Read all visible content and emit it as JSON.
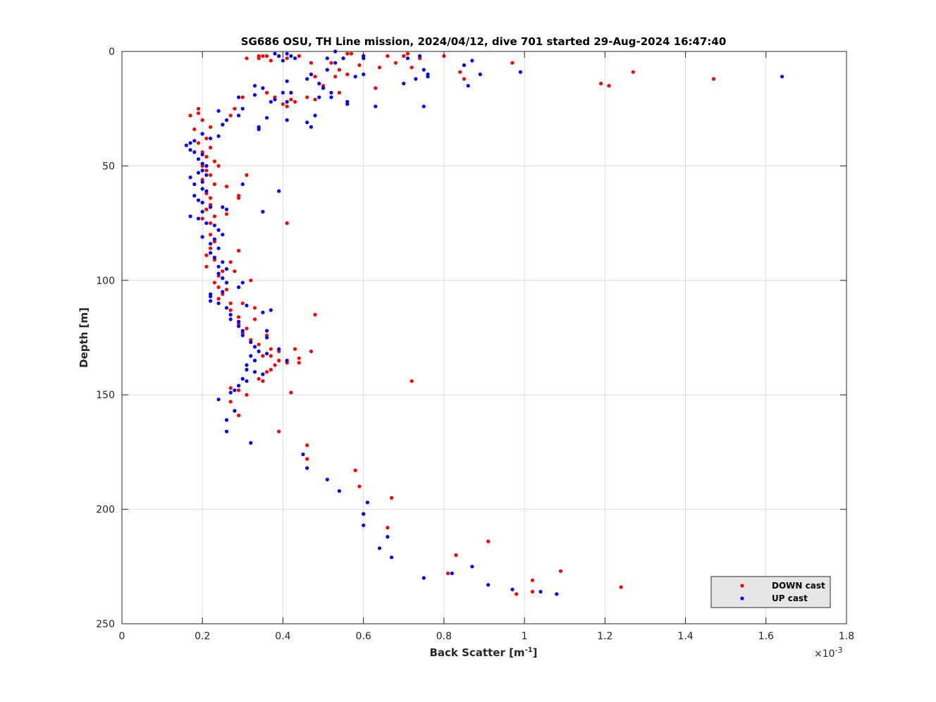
{
  "chart_data": {
    "type": "scatter",
    "title": "SG686 OSU, TH Line mission, 2024/04/12, dive 701 started 29-Aug-2024 16:47:40",
    "xlabel_main": "Back Scatter [m",
    "xlabel_sup": "-1",
    "xlabel_end": "]",
    "ylabel": "Depth [m]",
    "x_exponent_prefix": "×10",
    "x_exponent": "-3",
    "xlim": [
      0,
      1.8
    ],
    "ylim": [
      0,
      250
    ],
    "y_reversed": true,
    "grid": true,
    "legend_placement": "bottom-right",
    "xticks": [
      "0",
      "0.2",
      "0.4",
      "0.6",
      "0.8",
      "1",
      "1.2",
      "1.4",
      "1.6",
      "1.8"
    ],
    "yticks": [
      "0",
      "50",
      "100",
      "150",
      "200",
      "250"
    ],
    "series": [
      {
        "name": "DOWN cast",
        "color": "#ff0000",
        "points": [
          [
            0.31,
            3
          ],
          [
            0.34,
            2
          ],
          [
            0.35,
            2
          ],
          [
            0.36,
            2
          ],
          [
            0.34,
            3
          ],
          [
            0.37,
            4
          ],
          [
            0.39,
            2
          ],
          [
            0.41,
            3
          ],
          [
            0.44,
            2
          ],
          [
            0.47,
            5
          ],
          [
            0.52,
            5
          ],
          [
            0.55,
            3
          ],
          [
            0.56,
            1
          ],
          [
            0.57,
            1
          ],
          [
            0.59,
            6
          ],
          [
            0.6,
            2
          ],
          [
            0.64,
            7
          ],
          [
            0.66,
            2
          ],
          [
            0.68,
            5
          ],
          [
            0.7,
            2
          ],
          [
            0.71,
            1
          ],
          [
            0.72,
            7
          ],
          [
            0.74,
            3
          ],
          [
            0.8,
            2
          ],
          [
            0.84,
            9
          ],
          [
            0.85,
            12
          ],
          [
            0.97,
            5
          ],
          [
            1.19,
            14
          ],
          [
            1.21,
            15
          ],
          [
            1.27,
            9
          ],
          [
            1.47,
            12
          ],
          [
            0.56,
            10
          ],
          [
            0.54,
            8
          ],
          [
            0.53,
            11
          ],
          [
            0.48,
            11
          ],
          [
            0.5,
            15
          ],
          [
            0.54,
            18
          ],
          [
            0.63,
            16
          ],
          [
            0.46,
            20
          ],
          [
            0.42,
            21
          ],
          [
            0.48,
            21
          ],
          [
            0.4,
            23
          ],
          [
            0.43,
            22
          ],
          [
            0.41,
            24
          ],
          [
            0.38,
            20
          ],
          [
            0.36,
            18
          ],
          [
            0.3,
            20
          ],
          [
            0.28,
            25
          ],
          [
            0.27,
            28
          ],
          [
            0.25,
            32
          ],
          [
            0.22,
            33
          ],
          [
            0.19,
            25
          ],
          [
            0.19,
            27
          ],
          [
            0.17,
            28
          ],
          [
            0.2,
            30
          ],
          [
            0.18,
            34
          ],
          [
            0.2,
            36
          ],
          [
            0.21,
            38
          ],
          [
            0.19,
            40
          ],
          [
            0.22,
            42
          ],
          [
            0.2,
            44
          ],
          [
            0.21,
            46
          ],
          [
            0.23,
            48
          ],
          [
            0.2,
            50
          ],
          [
            0.21,
            52
          ],
          [
            0.24,
            50
          ],
          [
            0.22,
            54
          ],
          [
            0.2,
            56
          ],
          [
            0.23,
            58
          ],
          [
            0.26,
            59
          ],
          [
            0.31,
            54
          ],
          [
            0.21,
            62
          ],
          [
            0.22,
            64
          ],
          [
            0.29,
            63
          ],
          [
            0.29,
            64
          ],
          [
            0.22,
            67
          ],
          [
            0.21,
            69
          ],
          [
            0.26,
            71
          ],
          [
            0.23,
            72
          ],
          [
            0.2,
            73
          ],
          [
            0.22,
            75
          ],
          [
            0.41,
            75
          ],
          [
            0.24,
            78
          ],
          [
            0.22,
            80
          ],
          [
            0.23,
            83
          ],
          [
            0.22,
            86
          ],
          [
            0.21,
            89
          ],
          [
            0.29,
            87
          ],
          [
            0.23,
            91
          ],
          [
            0.27,
            92
          ],
          [
            0.21,
            94
          ],
          [
            0.25,
            96
          ],
          [
            0.24,
            98
          ],
          [
            0.28,
            96
          ],
          [
            0.32,
            100
          ],
          [
            0.23,
            101
          ],
          [
            0.24,
            103
          ],
          [
            0.26,
            104
          ],
          [
            0.25,
            106
          ],
          [
            0.24,
            108
          ],
          [
            0.27,
            110
          ],
          [
            0.3,
            110
          ],
          [
            0.33,
            112
          ],
          [
            0.27,
            113
          ],
          [
            0.48,
            115
          ],
          [
            0.29,
            116
          ],
          [
            0.33,
            117
          ],
          [
            0.29,
            119
          ],
          [
            0.31,
            121
          ],
          [
            0.3,
            123
          ],
          [
            0.36,
            124
          ],
          [
            0.32,
            126
          ],
          [
            0.34,
            128
          ],
          [
            0.37,
            130
          ],
          [
            0.43,
            130
          ],
          [
            0.39,
            131
          ],
          [
            0.47,
            131
          ],
          [
            0.35,
            133
          ],
          [
            0.37,
            133
          ],
          [
            0.39,
            135
          ],
          [
            0.44,
            134
          ],
          [
            0.41,
            136
          ],
          [
            0.44,
            136
          ],
          [
            0.38,
            137
          ],
          [
            0.37,
            139
          ],
          [
            0.36,
            140
          ],
          [
            0.35,
            141
          ],
          [
            0.34,
            143
          ],
          [
            0.35,
            144
          ],
          [
            0.72,
            144
          ],
          [
            0.27,
            147
          ],
          [
            0.29,
            148
          ],
          [
            0.42,
            149
          ],
          [
            0.31,
            150
          ],
          [
            0.27,
            153
          ],
          [
            0.29,
            159
          ],
          [
            0.39,
            166
          ],
          [
            0.46,
            172
          ],
          [
            0.46,
            178
          ],
          [
            0.58,
            183
          ],
          [
            0.59,
            190
          ],
          [
            0.67,
            195
          ],
          [
            0.6,
            202
          ],
          [
            0.66,
            208
          ],
          [
            0.91,
            214
          ],
          [
            0.83,
            220
          ],
          [
            1.09,
            227
          ],
          [
            0.81,
            228
          ],
          [
            1.02,
            231
          ],
          [
            1.24,
            234
          ],
          [
            1.02,
            236
          ],
          [
            0.98,
            237
          ]
        ]
      },
      {
        "name": "UP cast",
        "color": "#0000ff",
        "points": [
          [
            0.53,
            0
          ],
          [
            0.38,
            1
          ],
          [
            0.39,
            2
          ],
          [
            0.41,
            1
          ],
          [
            0.42,
            2
          ],
          [
            0.4,
            4
          ],
          [
            0.43,
            3
          ],
          [
            0.51,
            3
          ],
          [
            0.55,
            3
          ],
          [
            0.6,
            2
          ],
          [
            0.6,
            3
          ],
          [
            0.71,
            3
          ],
          [
            0.74,
            2
          ],
          [
            0.75,
            8
          ],
          [
            0.76,
            10
          ],
          [
            0.76,
            11
          ],
          [
            0.87,
            4
          ],
          [
            0.85,
            6
          ],
          [
            0.89,
            10
          ],
          [
            0.99,
            9
          ],
          [
            1.64,
            11
          ],
          [
            0.73,
            12
          ],
          [
            0.7,
            14
          ],
          [
            0.6,
            10
          ],
          [
            0.58,
            11
          ],
          [
            0.53,
            5
          ],
          [
            0.51,
            8
          ],
          [
            0.47,
            10
          ],
          [
            0.46,
            12
          ],
          [
            0.49,
            14
          ],
          [
            0.5,
            16
          ],
          [
            0.52,
            18
          ],
          [
            0.49,
            20
          ],
          [
            0.52,
            20
          ],
          [
            0.56,
            22
          ],
          [
            0.56,
            23
          ],
          [
            0.63,
            24
          ],
          [
            0.75,
            24
          ],
          [
            0.86,
            15
          ],
          [
            0.41,
            13
          ],
          [
            0.4,
            18
          ],
          [
            0.42,
            18
          ],
          [
            0.41,
            22
          ],
          [
            0.38,
            21
          ],
          [
            0.37,
            22
          ],
          [
            0.35,
            16
          ],
          [
            0.33,
            15
          ],
          [
            0.33,
            19
          ],
          [
            0.29,
            20
          ],
          [
            0.3,
            25
          ],
          [
            0.29,
            28
          ],
          [
            0.26,
            30
          ],
          [
            0.25,
            32
          ],
          [
            0.24,
            26
          ],
          [
            0.36,
            29
          ],
          [
            0.34,
            33
          ],
          [
            0.41,
            30
          ],
          [
            0.46,
            31
          ],
          [
            0.47,
            33
          ],
          [
            0.48,
            28
          ],
          [
            0.34,
            34
          ],
          [
            0.24,
            37
          ],
          [
            0.22,
            38
          ],
          [
            0.2,
            36
          ],
          [
            0.18,
            39
          ],
          [
            0.17,
            40
          ],
          [
            0.16,
            41
          ],
          [
            0.17,
            43
          ],
          [
            0.18,
            44
          ],
          [
            0.2,
            45
          ],
          [
            0.19,
            47
          ],
          [
            0.2,
            49
          ],
          [
            0.21,
            50
          ],
          [
            0.2,
            52
          ],
          [
            0.19,
            53
          ],
          [
            0.21,
            54
          ],
          [
            0.17,
            55
          ],
          [
            0.2,
            57
          ],
          [
            0.18,
            58
          ],
          [
            0.2,
            60
          ],
          [
            0.21,
            61
          ],
          [
            0.18,
            63
          ],
          [
            0.19,
            65
          ],
          [
            0.2,
            66
          ],
          [
            0.22,
            68
          ],
          [
            0.25,
            68
          ],
          [
            0.26,
            69
          ],
          [
            0.35,
            70
          ],
          [
            0.39,
            61
          ],
          [
            0.3,
            58
          ],
          [
            0.2,
            70
          ],
          [
            0.17,
            72
          ],
          [
            0.19,
            73
          ],
          [
            0.21,
            75
          ],
          [
            0.23,
            76
          ],
          [
            0.24,
            78
          ],
          [
            0.25,
            80
          ],
          [
            0.23,
            82
          ],
          [
            0.2,
            81
          ],
          [
            0.22,
            84
          ],
          [
            0.24,
            86
          ],
          [
            0.22,
            88
          ],
          [
            0.23,
            90
          ],
          [
            0.25,
            92
          ],
          [
            0.24,
            94
          ],
          [
            0.26,
            95
          ],
          [
            0.24,
            97
          ],
          [
            0.25,
            99
          ],
          [
            0.26,
            101
          ],
          [
            0.3,
            101
          ],
          [
            0.29,
            103
          ],
          [
            0.25,
            105
          ],
          [
            0.22,
            106
          ],
          [
            0.22,
            107
          ],
          [
            0.22,
            109
          ],
          [
            0.24,
            110
          ],
          [
            0.26,
            112
          ],
          [
            0.31,
            111
          ],
          [
            0.37,
            113
          ],
          [
            0.35,
            114
          ],
          [
            0.27,
            115
          ],
          [
            0.27,
            117
          ],
          [
            0.29,
            118
          ],
          [
            0.29,
            120
          ],
          [
            0.3,
            122
          ],
          [
            0.3,
            124
          ],
          [
            0.36,
            122
          ],
          [
            0.36,
            125
          ],
          [
            0.32,
            127
          ],
          [
            0.33,
            129
          ],
          [
            0.34,
            131
          ],
          [
            0.32,
            133
          ],
          [
            0.33,
            135
          ],
          [
            0.31,
            137
          ],
          [
            0.31,
            139
          ],
          [
            0.33,
            140
          ],
          [
            0.35,
            141
          ],
          [
            0.36,
            132
          ],
          [
            0.41,
            135
          ],
          [
            0.39,
            130
          ],
          [
            0.3,
            143
          ],
          [
            0.31,
            144
          ],
          [
            0.29,
            146
          ],
          [
            0.28,
            148
          ],
          [
            0.27,
            149
          ],
          [
            0.24,
            152
          ],
          [
            0.28,
            157
          ],
          [
            0.26,
            161
          ],
          [
            0.26,
            166
          ],
          [
            0.32,
            171
          ],
          [
            0.45,
            176
          ],
          [
            0.46,
            182
          ],
          [
            0.51,
            187
          ],
          [
            0.54,
            192
          ],
          [
            0.61,
            197
          ],
          [
            0.6,
            202
          ],
          [
            0.6,
            207
          ],
          [
            0.66,
            212
          ],
          [
            0.64,
            217
          ],
          [
            0.67,
            221
          ],
          [
            0.87,
            225
          ],
          [
            0.82,
            228
          ],
          [
            0.75,
            230
          ],
          [
            0.91,
            233
          ],
          [
            0.97,
            235
          ],
          [
            1.04,
            236
          ],
          [
            1.08,
            237
          ]
        ]
      }
    ]
  }
}
